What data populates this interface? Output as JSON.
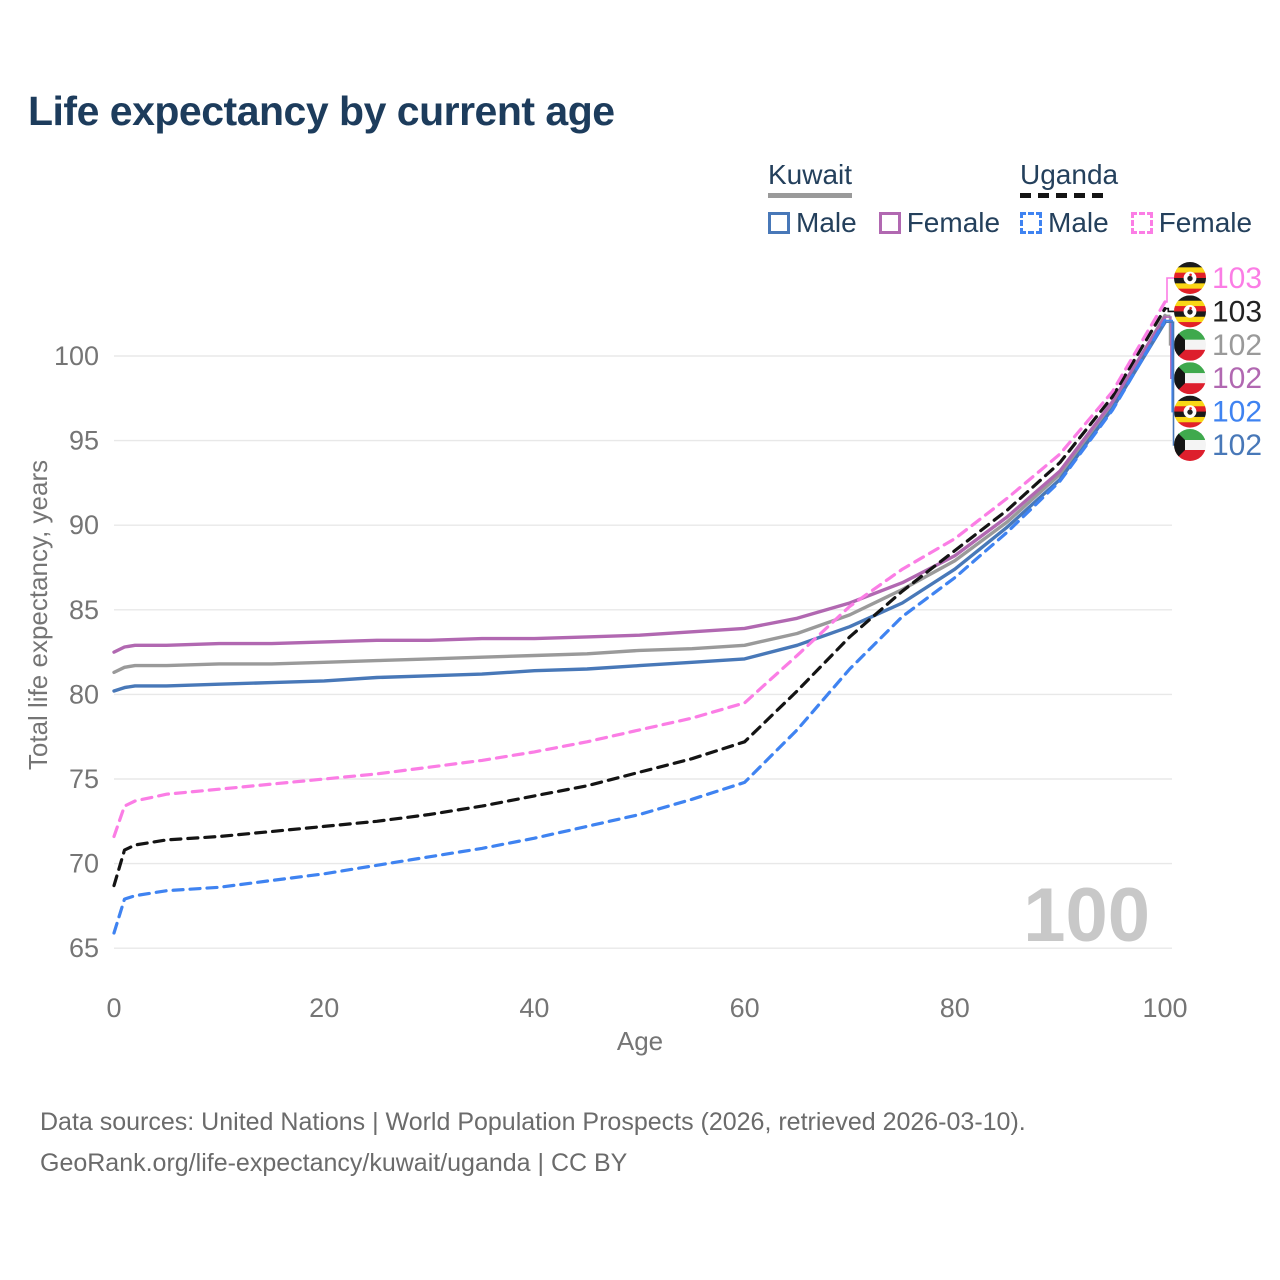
{
  "title": "Life expectancy by current age",
  "legend": {
    "kuwait": {
      "name": "Kuwait",
      "male": "Male",
      "female": "Female"
    },
    "uganda": {
      "name": "Uganda",
      "male": "Male",
      "female": "Female"
    }
  },
  "colors": {
    "kuwait_male": "#4878b8",
    "kuwait_female": "#b168b1",
    "kuwait_total": "#9a9a9a",
    "uganda_male": "#3f83f1",
    "uganda_female": "#fb7de5",
    "uganda_total": "#141414",
    "title_text": "#1d3c5c",
    "axis_text": "#757575",
    "grid": "#e8e8e8",
    "watermark": "#c8c8c8",
    "footer_text": "#6b6b6b"
  },
  "watermark": "100",
  "chart_data": {
    "type": "line",
    "title": "Life expectancy by current age",
    "xlabel": "Age",
    "ylabel": "Total life expectancy, years",
    "xlim": [
      0,
      100
    ],
    "ylim": [
      65,
      103.5
    ],
    "x_ticks": [
      0,
      20,
      40,
      60,
      80,
      100
    ],
    "y_ticks": [
      65,
      70,
      75,
      80,
      85,
      90,
      95,
      100
    ],
    "grid": "horizontal-only",
    "legend_position": "top-right",
    "x": [
      0,
      1,
      2,
      5,
      10,
      15,
      20,
      25,
      30,
      35,
      40,
      45,
      50,
      55,
      60,
      65,
      70,
      75,
      80,
      85,
      90,
      95,
      100
    ],
    "series": [
      {
        "key": "kuwait-total",
        "name": "Kuwait (both sexes)",
        "country": "Kuwait",
        "style": "solid",
        "color": "#9a9a9a",
        "values": [
          81.3,
          81.6,
          81.7,
          81.7,
          81.8,
          81.8,
          81.9,
          82.0,
          82.1,
          82.2,
          82.3,
          82.4,
          82.6,
          82.7,
          82.9,
          83.6,
          84.7,
          86.2,
          87.9,
          90.2,
          93.0,
          97.1,
          102.4
        ]
      },
      {
        "key": "kuwait-female",
        "name": "Kuwait Female",
        "country": "Kuwait",
        "style": "solid",
        "color": "#b168b1",
        "values": [
          82.5,
          82.8,
          82.9,
          82.9,
          83.0,
          83.0,
          83.1,
          83.2,
          83.2,
          83.3,
          83.3,
          83.4,
          83.5,
          83.7,
          83.9,
          84.5,
          85.4,
          86.6,
          88.2,
          90.5,
          93.2,
          97.3,
          102.3
        ]
      },
      {
        "key": "kuwait-male",
        "name": "Kuwait Male",
        "country": "Kuwait",
        "style": "solid",
        "color": "#4878b8",
        "values": [
          80.2,
          80.4,
          80.5,
          80.5,
          80.6,
          80.7,
          80.8,
          81.0,
          81.1,
          81.2,
          81.4,
          81.5,
          81.7,
          81.9,
          82.1,
          82.9,
          84.0,
          85.4,
          87.4,
          89.9,
          92.7,
          96.9,
          102.0
        ]
      },
      {
        "key": "uganda-male",
        "name": "Uganda Male",
        "country": "Uganda",
        "style": "dashed",
        "color": "#3f83f1",
        "values": [
          65.9,
          67.9,
          68.1,
          68.4,
          68.6,
          69.0,
          69.4,
          69.9,
          70.4,
          70.9,
          71.5,
          72.2,
          72.9,
          73.8,
          74.8,
          77.9,
          81.5,
          84.6,
          86.9,
          89.6,
          92.6,
          96.8,
          102.1
        ]
      },
      {
        "key": "uganda-total",
        "name": "Uganda (both sexes)",
        "country": "Uganda",
        "style": "dashed",
        "color": "#141414",
        "values": [
          68.7,
          70.8,
          71.1,
          71.4,
          71.6,
          71.9,
          72.2,
          72.5,
          72.9,
          73.4,
          74.0,
          74.6,
          75.4,
          76.2,
          77.2,
          80.2,
          83.4,
          86.1,
          88.5,
          90.9,
          93.7,
          97.6,
          102.8
        ]
      },
      {
        "key": "uganda-female",
        "name": "Uganda Female",
        "country": "Uganda",
        "style": "dashed",
        "color": "#fb7de5",
        "values": [
          71.6,
          73.4,
          73.7,
          74.1,
          74.4,
          74.7,
          75.0,
          75.3,
          75.7,
          76.1,
          76.6,
          77.2,
          77.9,
          78.6,
          79.5,
          82.3,
          85.2,
          87.4,
          89.2,
          91.6,
          94.2,
          97.9,
          103.2
        ]
      }
    ],
    "end_labels": [
      {
        "text": "103",
        "series": "uganda-female",
        "flag": "uganda",
        "color": "#fb7de5"
      },
      {
        "text": "103",
        "series": "uganda-total",
        "flag": "uganda",
        "color": "#222222"
      },
      {
        "text": "102",
        "series": "kuwait-total",
        "flag": "kuwait",
        "color": "#9a9a9a"
      },
      {
        "text": "102",
        "series": "kuwait-female",
        "flag": "kuwait",
        "color": "#b168b1"
      },
      {
        "text": "102",
        "series": "uganda-male",
        "flag": "uganda",
        "color": "#3f83f1"
      },
      {
        "text": "102",
        "series": "kuwait-male",
        "flag": "kuwait",
        "color": "#4878b8"
      }
    ]
  },
  "footer": {
    "line1": "Data sources: United Nations | World Population Prospects (2026, retrieved 2026-03-10).",
    "line2": "GeoRank.org/life-expectancy/kuwait/uganda | CC BY"
  }
}
